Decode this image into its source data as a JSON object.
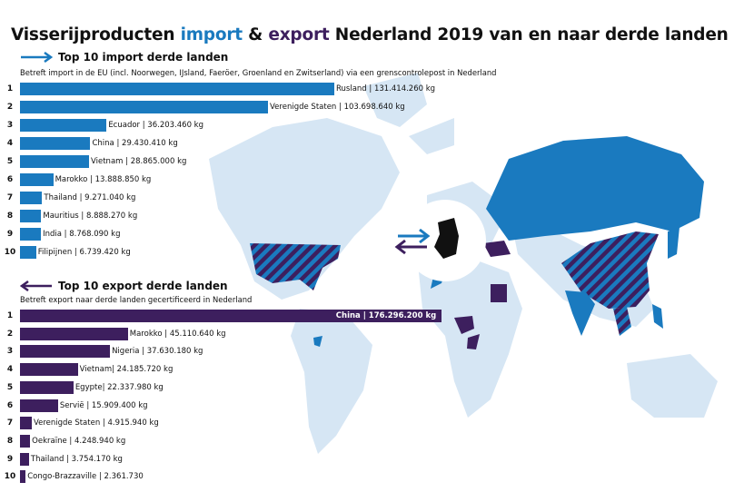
{
  "title": {
    "part1": "Visserijproducten ",
    "import": "import",
    "amp": " & ",
    "export": "export",
    "part2": " Nederland 2019 van en naar derde landen"
  },
  "colors": {
    "import": "#1a7abf",
    "export": "#3d1f5e",
    "land": "#d6e6f4"
  },
  "chart_data": [
    {
      "type": "bar",
      "orientation": "horizontal",
      "title": "Top 10 import derde landen",
      "subtitle": "Betreft import in de EU (incl. Noorwegen, IJsland, Faeröer, Groenland en Zwitserland) via een grenscontrolepost in Nederland",
      "unit": "kg",
      "categories": [
        "Rusland",
        "Verenigde Staten",
        "Ecuador",
        "China",
        "Vietnam",
        "Marokko",
        "Thailand",
        "Mauritius",
        "India",
        "Filipijnen"
      ],
      "values": [
        131414260,
        103698640,
        36203460,
        29430410,
        28865000,
        13888850,
        9271040,
        8888270,
        8768090,
        6739420
      ],
      "labels": [
        "Rusland | 131.414.260 kg",
        "Verenigde Staten | 103.698.640 kg",
        "Ecuador | 36.203.460 kg",
        "China | 29.430.410 kg",
        "Vietnam | 28.865.000 kg",
        "Marokko | 13.888.850 kg",
        "Thailand | 9.271.040 kg",
        "Mauritius | 8.888.270 kg",
        "India | 8.768.090 kg",
        "Filipijnen | 6.739.420 kg"
      ],
      "ranks": [
        "1",
        "2",
        "3",
        "4",
        "5",
        "6",
        "7",
        "8",
        "9",
        "10"
      ]
    },
    {
      "type": "bar",
      "orientation": "horizontal",
      "title": "Top 10 export derde landen",
      "subtitle": "Betreft export naar derde landen gecertificeerd in Nederland",
      "unit": "kg",
      "categories": [
        "China",
        "Marokko",
        "Nigeria",
        "Vietnam",
        "Egypte",
        "Servië",
        "Verenigde Staten",
        "Oekraïne",
        "Thailand",
        "Congo-Brazzaville"
      ],
      "values": [
        176296200,
        45110640,
        37630180,
        24185720,
        22337980,
        15909400,
        4915940,
        4248940,
        3754170,
        2361730
      ],
      "labels": [
        "China | 176.296.200 kg",
        "Marokko | 45.110.640 kg",
        "Nigeria | 37.630.180 kg",
        "Vietnam| 24.185.720 kg",
        "Egypte| 22.337.980 kg",
        "Servië | 15.909.400 kg",
        "Verenigde Staten | 4.915.940 kg",
        "Oekraïne | 4.248.940 kg",
        "Thailand | 3.754.170 kg",
        "Congo-Brazzaville | 2.361.730"
      ],
      "ranks": [
        "1",
        "2",
        "3",
        "4",
        "5",
        "6",
        "7",
        "8",
        "9",
        "10"
      ]
    }
  ]
}
